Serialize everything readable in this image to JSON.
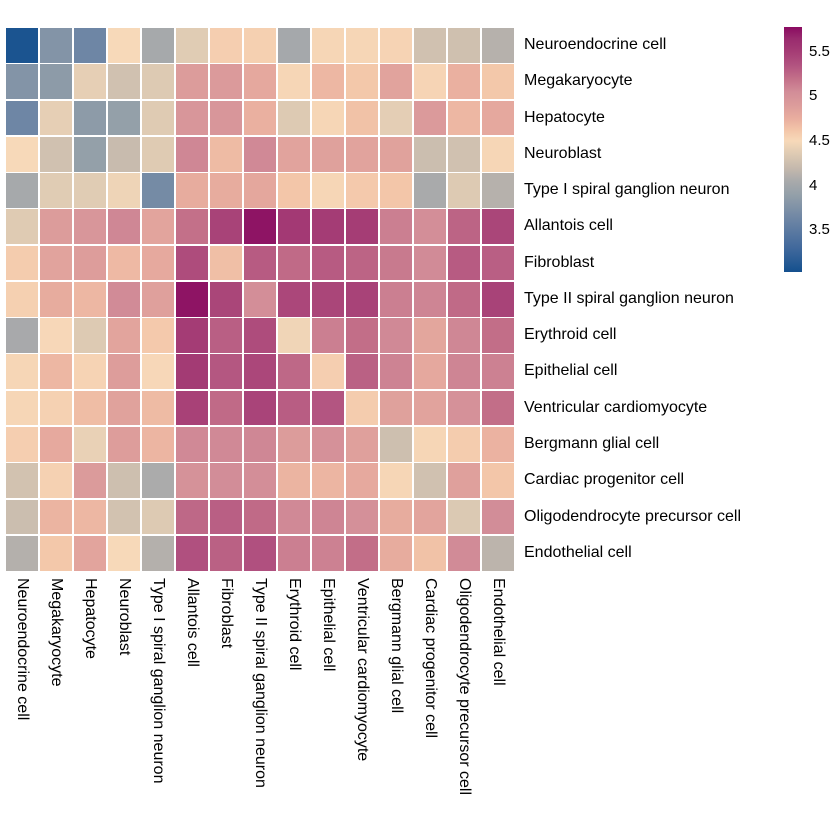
{
  "chart_data": {
    "type": "heatmap",
    "title": "",
    "legend_position": "right",
    "grid_gap_color": "#ffffff",
    "text_color": "#000000",
    "row_labels": [
      "Neuroendocrine cell",
      "Megakaryocyte",
      "Hepatocyte",
      "Neuroblast",
      "Type I spiral ganglion neuron",
      "Allantois cell",
      "Fibroblast",
      "Type II spiral ganglion neuron",
      "Erythroid cell",
      "Epithelial cell",
      "Ventricular cardiomyocyte",
      "Bergmann glial cell",
      "Cardiac progenitor cell",
      "Oligodendrocyte precursor cell",
      "Endothelial cell"
    ],
    "col_labels": [
      "Neuroendocrine cell",
      "Megakaryocyte",
      "Hepatocyte",
      "Neuroblast",
      "Type I spiral ganglion neuron",
      "Allantois cell",
      "Fibroblast",
      "Type II spiral ganglion neuron",
      "Erythroid cell",
      "Epithelial cell",
      "Ventricular cardiomyocyte",
      "Bergmann glial cell",
      "Cardiac progenitor cell",
      "Oligodendrocyte precursor cell",
      "Endothelial cell"
    ],
    "values": [
      [
        3.05,
        3.78,
        3.63,
        4.5,
        4.03,
        4.37,
        4.57,
        4.56,
        4.02,
        4.52,
        4.52,
        4.54,
        4.27,
        4.26,
        4.12
      ],
      [
        3.78,
        3.85,
        4.4,
        4.27,
        4.35,
        4.9,
        4.92,
        4.8,
        4.52,
        4.7,
        4.61,
        4.84,
        4.53,
        4.74,
        4.61
      ],
      [
        3.63,
        4.4,
        3.85,
        3.9,
        4.36,
        4.96,
        4.96,
        4.74,
        4.35,
        4.52,
        4.64,
        4.39,
        4.92,
        4.7,
        4.8
      ],
      [
        4.5,
        4.27,
        3.9,
        4.22,
        4.36,
        5.08,
        4.68,
        5.07,
        4.84,
        4.86,
        4.84,
        4.85,
        4.24,
        4.27,
        4.52
      ],
      [
        4.03,
        4.37,
        4.37,
        4.45,
        3.68,
        4.77,
        4.77,
        4.81,
        4.62,
        4.52,
        4.6,
        4.62,
        4.05,
        4.35,
        4.12
      ],
      [
        4.36,
        4.9,
        4.96,
        5.08,
        4.83,
        5.2,
        5.46,
        5.76,
        5.53,
        5.51,
        5.5,
        5.12,
        5.04,
        5.26,
        5.44
      ],
      [
        4.58,
        4.84,
        4.89,
        4.69,
        4.79,
        5.4,
        4.66,
        5.31,
        5.23,
        5.31,
        5.26,
        5.15,
        5.06,
        5.31,
        5.29
      ],
      [
        4.56,
        4.77,
        4.7,
        5.06,
        4.87,
        5.76,
        5.44,
        5.04,
        5.43,
        5.44,
        5.46,
        5.12,
        5.09,
        5.23,
        5.46
      ],
      [
        4.04,
        4.51,
        4.35,
        4.83,
        4.6,
        5.51,
        5.29,
        5.4,
        4.46,
        5.12,
        5.21,
        5.07,
        4.82,
        5.08,
        5.21
      ],
      [
        4.52,
        4.7,
        4.54,
        4.89,
        4.51,
        5.52,
        5.33,
        5.43,
        5.24,
        4.57,
        5.28,
        5.1,
        4.8,
        5.09,
        5.11
      ],
      [
        4.52,
        4.55,
        4.67,
        4.85,
        4.68,
        5.47,
        5.23,
        5.45,
        5.3,
        5.34,
        4.58,
        4.86,
        4.84,
        5.01,
        5.21
      ],
      [
        4.57,
        4.79,
        4.42,
        4.89,
        4.71,
        5.07,
        5.07,
        5.08,
        4.9,
        5.01,
        4.87,
        4.25,
        4.52,
        4.58,
        4.73
      ],
      [
        4.28,
        4.55,
        4.91,
        4.25,
        4.06,
        5.0,
        5.05,
        5.04,
        4.72,
        4.71,
        4.79,
        4.52,
        4.27,
        4.87,
        4.62
      ],
      [
        4.24,
        4.72,
        4.7,
        4.28,
        4.35,
        5.24,
        5.29,
        5.23,
        5.07,
        5.09,
        5.02,
        4.77,
        4.83,
        4.34,
        5.05
      ],
      [
        4.11,
        4.61,
        4.83,
        4.5,
        4.11,
        5.37,
        5.28,
        5.37,
        5.12,
        5.11,
        5.21,
        4.77,
        4.64,
        5.06,
        4.15
      ]
    ],
    "value_range": [
      3.03,
      5.78
    ],
    "colormap_stops": [
      [
        3.0,
        "#14508e"
      ],
      [
        3.3,
        "#41699c"
      ],
      [
        3.6,
        "#6a83a4"
      ],
      [
        3.9,
        "#94a0a9"
      ],
      [
        4.05,
        "#a9aaab"
      ],
      [
        4.2,
        "#c5b9ad"
      ],
      [
        4.35,
        "#ddcab3"
      ],
      [
        4.5,
        "#f7d9b9"
      ],
      [
        4.62,
        "#f3c6a9"
      ],
      [
        4.75,
        "#e9ae9f"
      ],
      [
        4.9,
        "#dc9c9b"
      ],
      [
        5.05,
        "#d28d98"
      ],
      [
        5.2,
        "#c37089"
      ],
      [
        5.35,
        "#b25380"
      ],
      [
        5.5,
        "#a53d75"
      ],
      [
        5.65,
        "#992b6e"
      ],
      [
        5.8,
        "#8a0b61"
      ]
    ],
    "colorbar": {
      "tick_values": [
        5.5,
        5.0,
        4.5,
        4.0,
        3.5
      ],
      "tick_labels": [
        "5.5",
        "5",
        "4.5",
        "4",
        "3.5"
      ]
    }
  }
}
